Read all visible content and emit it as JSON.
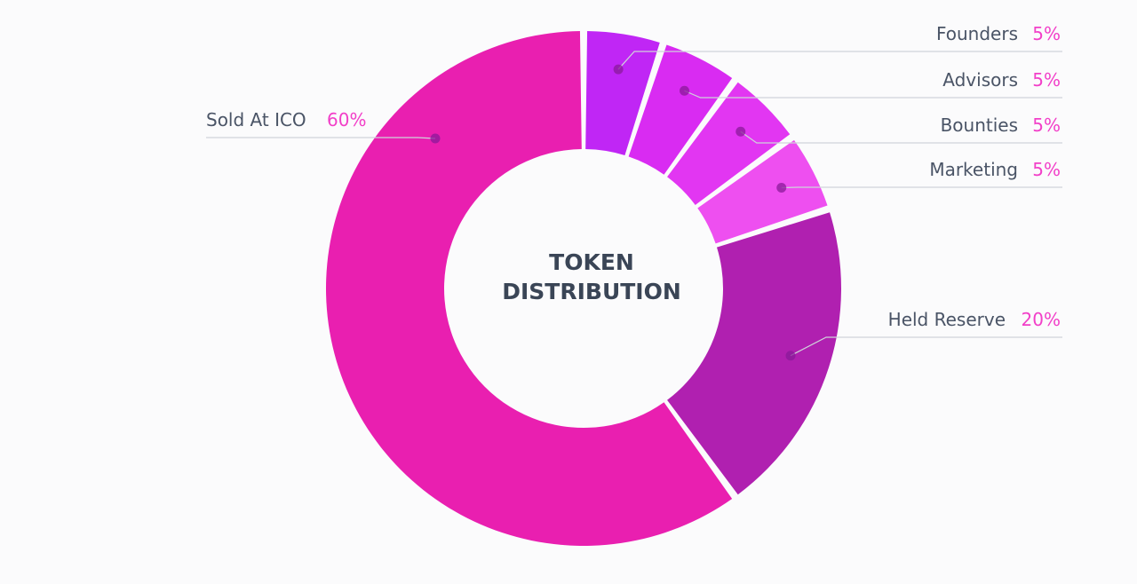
{
  "chart_data": {
    "type": "pie",
    "variant": "donut",
    "center_title_lines": [
      "TOKEN",
      "DISTRIBUTION"
    ],
    "slices": [
      {
        "label": "Founders",
        "value": 5,
        "value_label": "5%",
        "color": "#c026f5"
      },
      {
        "label": "Advisors",
        "value": 5,
        "value_label": "5%",
        "color": "#d92bf2"
      },
      {
        "label": "Bounties",
        "value": 5,
        "value_label": "5%",
        "color": "#e236f2"
      },
      {
        "label": "Marketing",
        "value": 5,
        "value_label": "5%",
        "color": "#ee4ff0"
      },
      {
        "label": "Held Reserve",
        "value": 20,
        "value_label": "20%",
        "color": "#b020b0"
      },
      {
        "label": "Sold At ICO",
        "value": 60,
        "value_label": "60%",
        "color": "#e91fb0"
      }
    ],
    "value_label_color": "#f23fc8",
    "label_text_color": "#4a5466",
    "leader_line_color": "#cfd3da",
    "marker_color": "#8a1a9a"
  }
}
